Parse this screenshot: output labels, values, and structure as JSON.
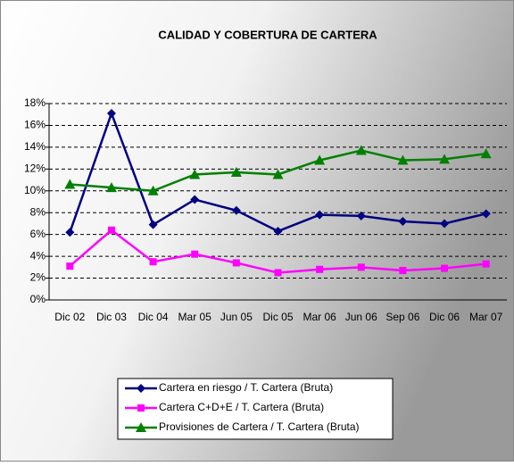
{
  "chart_data": {
    "type": "line",
    "title": "CALIDAD Y COBERTURA DE CARTERA",
    "categories": [
      "Dic 02",
      "Dic 03",
      "Dic 04",
      "Mar 05",
      "Jun 05",
      "Dic 05",
      "Mar 06",
      "Jun 06",
      "Sep 06",
      "Dic 06",
      "Mar 07"
    ],
    "series": [
      {
        "name": "Cartera en riesgo / T. Cartera (Bruta)",
        "color": "#000080",
        "marker": "diamond",
        "values": [
          6.2,
          17.1,
          6.9,
          9.2,
          8.2,
          6.3,
          7.8,
          7.7,
          7.2,
          7.0,
          7.9
        ]
      },
      {
        "name": "Cartera C+D+E / T. Cartera  (Bruta)",
        "color": "#ff00ff",
        "marker": "square",
        "values": [
          3.1,
          6.4,
          3.5,
          4.2,
          3.4,
          2.5,
          2.8,
          3.0,
          2.7,
          2.9,
          3.3
        ]
      },
      {
        "name": "Provisiones de Cartera / T. Cartera (Bruta)",
        "color": "#008000",
        "marker": "triangle",
        "values": [
          10.6,
          10.3,
          10.0,
          11.5,
          11.7,
          11.5,
          12.8,
          13.7,
          12.8,
          12.9,
          13.4
        ]
      }
    ],
    "ylim": [
      0,
      18
    ],
    "yticks": [
      {
        "value": 0,
        "label": "0%"
      },
      {
        "value": 2,
        "label": "2%"
      },
      {
        "value": 4,
        "label": "4%"
      },
      {
        "value": 6,
        "label": "6%"
      },
      {
        "value": 8,
        "label": "8%"
      },
      {
        "value": 10,
        "label": "10%"
      },
      {
        "value": 12,
        "label": "12%"
      },
      {
        "value": 14,
        "label": "14%"
      },
      {
        "value": 16,
        "label": "16%"
      },
      {
        "value": 18,
        "label": "18%"
      }
    ],
    "grid": true
  }
}
